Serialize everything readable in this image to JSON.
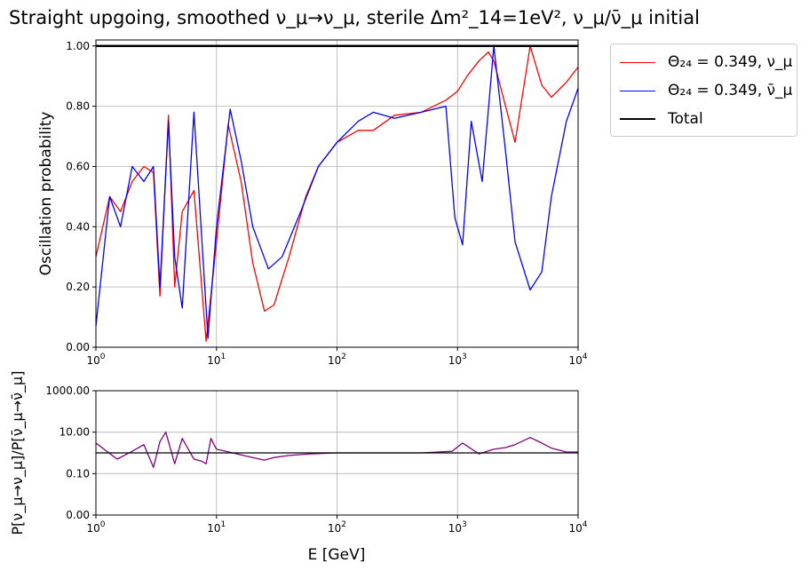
{
  "title": "Straight upgoing, smoothed ν_μ→ν_μ, sterile Δm²_14=1eV², ν_μ/ν̄_μ initial",
  "colors": {
    "nu": "#ff0000",
    "nubar": "#0000ff",
    "total": "#000000",
    "ratio": "#800080",
    "grid": "#b0b0b0"
  },
  "chart_data": [
    {
      "type": "line",
      "xlabel": "",
      "ylabel": "Oscillation probability",
      "xscale": "log",
      "xlim": [
        1,
        10000
      ],
      "ylim": [
        0,
        1.02
      ],
      "x_ticks": [
        1,
        10,
        100,
        1000,
        10000
      ],
      "x_tick_labels": [
        "10^0",
        "10^1",
        "10^2",
        "10^3",
        "10^4"
      ],
      "y_ticks": [
        0,
        0.2,
        0.4,
        0.6,
        0.8,
        1.0
      ],
      "y_tick_labels": [
        "0.00",
        "0.20",
        "0.40",
        "0.60",
        "0.80",
        "1.00"
      ],
      "grid": true,
      "legend_position": "outside-top-right",
      "legend": [
        "Θ₂₄ = 0.349, ν_μ",
        "Θ₂₄ = 0.349, ν̄_μ",
        "Total"
      ],
      "series": [
        {
          "name": "Θ₂₄ = 0.349, ν_μ",
          "color": "#ff0000",
          "x": [
            1,
            1.3,
            1.6,
            2,
            2.5,
            3,
            3.4,
            4,
            4.5,
            5.2,
            6.5,
            8.2,
            10,
            12.5,
            16,
            20,
            25,
            30,
            40,
            55,
            70,
            100,
            150,
            200,
            300,
            500,
            800,
            1000,
            1200,
            1500,
            1800,
            2000,
            2500,
            3000,
            4000,
            5000,
            6000,
            8000,
            10000
          ],
          "y": [
            0.3,
            0.5,
            0.45,
            0.55,
            0.6,
            0.58,
            0.17,
            0.77,
            0.2,
            0.45,
            0.52,
            0.02,
            0.35,
            0.74,
            0.55,
            0.28,
            0.12,
            0.14,
            0.3,
            0.5,
            0.6,
            0.68,
            0.72,
            0.72,
            0.77,
            0.78,
            0.82,
            0.85,
            0.9,
            0.95,
            0.98,
            0.95,
            0.8,
            0.68,
            1.0,
            0.87,
            0.83,
            0.88,
            0.93
          ]
        },
        {
          "name": "Θ₂₄ = 0.349, ν̄_μ",
          "color": "#0000ff",
          "x": [
            1,
            1.3,
            1.6,
            2,
            2.5,
            3,
            3.4,
            4,
            4.5,
            5.2,
            6.5,
            8.5,
            10,
            13,
            16,
            20,
            27,
            35,
            50,
            70,
            100,
            150,
            200,
            300,
            500,
            800,
            950,
            1100,
            1300,
            1600,
            2000,
            2500,
            3000,
            4000,
            5000,
            6000,
            8000,
            10000
          ],
          "y": [
            0.07,
            0.5,
            0.4,
            0.6,
            0.55,
            0.6,
            0.2,
            0.75,
            0.3,
            0.13,
            0.78,
            0.03,
            0.4,
            0.79,
            0.62,
            0.4,
            0.26,
            0.3,
            0.45,
            0.6,
            0.68,
            0.75,
            0.78,
            0.76,
            0.78,
            0.8,
            0.43,
            0.34,
            0.75,
            0.55,
            1.0,
            0.65,
            0.35,
            0.19,
            0.25,
            0.5,
            0.75,
            0.86
          ]
        },
        {
          "name": "Total",
          "color": "#000000",
          "x": [
            1,
            10000
          ],
          "y": [
            1.0,
            1.0
          ]
        }
      ]
    },
    {
      "type": "line",
      "xlabel": "E [GeV]",
      "ylabel": "P[ν_μ→ν_μ]/P[ν̄_μ→ν̄_μ]",
      "xscale": "log",
      "yscale": "log",
      "xlim": [
        1,
        10000
      ],
      "ylim": [
        0.001,
        1000
      ],
      "x_ticks": [
        1,
        10,
        100,
        1000,
        10000
      ],
      "x_tick_labels": [
        "10^0",
        "10^1",
        "10^2",
        "10^3",
        "10^4"
      ],
      "y_ticks": [
        0.001,
        0.1,
        10,
        1000
      ],
      "y_tick_labels": [
        "0.00",
        "0.10",
        "10.00",
        "1000.00"
      ],
      "grid": true,
      "series": [
        {
          "name": "",
          "color": "#800080",
          "x": [
            1,
            1.5,
            2,
            2.5,
            3,
            3.4,
            3.8,
            4.5,
            5.2,
            6.5,
            7.5,
            8.2,
            9,
            10,
            12,
            16,
            20,
            25,
            30,
            40,
            60,
            100,
            200,
            500,
            900,
            1100,
            1500,
            2000,
            2500,
            3000,
            4000,
            5000,
            6000,
            8000,
            10000
          ],
          "y": [
            3.0,
            0.5,
            1.2,
            2.5,
            0.2,
            3.5,
            10.0,
            0.3,
            5.0,
            0.5,
            0.4,
            0.3,
            5.0,
            1.5,
            1.2,
            0.8,
            0.6,
            0.45,
            0.6,
            0.75,
            0.9,
            1.0,
            1.0,
            1.0,
            1.2,
            3.0,
            0.9,
            1.5,
            1.8,
            2.5,
            5.5,
            3.0,
            1.7,
            1.1,
            1.1
          ]
        },
        {
          "name": "",
          "color": "#000000",
          "x": [
            1,
            10000
          ],
          "y": [
            1.0,
            1.0
          ]
        }
      ]
    }
  ]
}
